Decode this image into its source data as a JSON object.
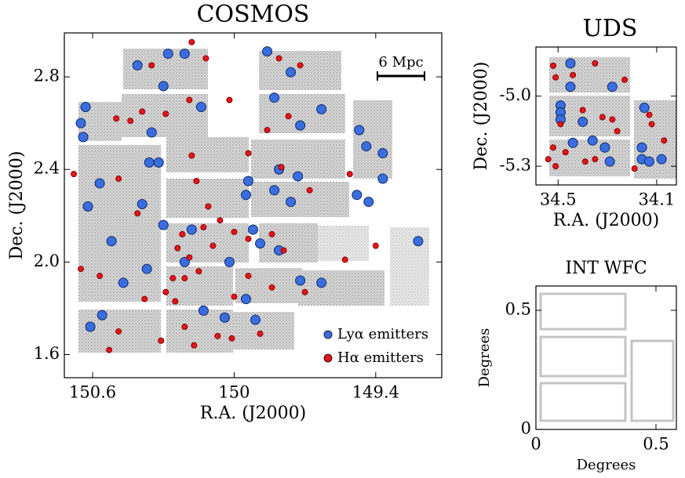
{
  "chart_data": [
    {
      "type": "scatter",
      "title": "COSMOS",
      "xlabel": "R.A. (J2000)",
      "ylabel": "Dec. (J2000)",
      "xlim": [
        150.72,
        149.12
      ],
      "ylim": [
        1.5,
        2.99
      ],
      "xticks": [
        150.6,
        150,
        149.4
      ],
      "yticks": [
        1.6,
        {
          "value": 2,
          "label": "2.0"
        },
        2.4,
        2.8
      ],
      "legend": "lower right",
      "annotation": "6 Mpc",
      "series": [
        {
          "name": "Lyα emitters",
          "color": "#3a6ee0",
          "x": [
            150.41,
            150.28,
            150.21,
            150.3,
            150.14,
            150.35,
            150.63,
            150.65,
            150.64,
            150.36,
            150.32,
            150.57,
            150.62,
            150.39,
            150.3,
            150.52,
            150.18,
            150.21,
            150.37,
            150.47,
            150.56,
            150.61,
            150.13,
            150.04,
            149.91,
            149.95,
            150.02,
            149.86,
            149.76,
            149.83,
            149.63,
            149.72,
            149.47,
            149.44,
            149.37,
            149.37,
            149.48,
            149.43,
            149.76,
            149.83,
            149.73,
            149.81,
            149.94,
            149.89,
            149.81,
            149.72,
            149.63,
            149.22,
            149.95,
            149.92
          ],
          "y": [
            2.85,
            2.9,
            2.9,
            2.76,
            2.67,
            2.56,
            2.67,
            2.6,
            2.54,
            2.43,
            2.43,
            2.34,
            2.24,
            2.25,
            2.16,
            2.09,
            2.14,
            2.0,
            1.97,
            1.91,
            1.77,
            1.72,
            1.79,
            1.76,
            1.75,
            1.84,
            2.0,
            2.91,
            2.82,
            2.71,
            2.66,
            2.59,
            2.57,
            2.5,
            2.47,
            2.36,
            2.29,
            2.26,
            2.26,
            2.31,
            2.37,
            2.4,
            2.35,
            2.08,
            2.05,
            1.92,
            1.91,
            2.09,
            2.29,
            2.14
          ]
        },
        {
          "name": "Hα emitters",
          "color": "#e3161b",
          "x": [
            150.18,
            150.12,
            150.35,
            150.19,
            150.39,
            150.29,
            150.5,
            150.44,
            150.02,
            149.81,
            149.72,
            149.77,
            149.86,
            149.94,
            149.8,
            149.68,
            149.51,
            150.18,
            150.16,
            150.49,
            150.68,
            150.41,
            150.11,
            150.22,
            150.24,
            150.19,
            150.15,
            150.09,
            150.26,
            150.29,
            150.38,
            150.25,
            150.21,
            150.17,
            150.07,
            150.0,
            149.94,
            149.84,
            149.7,
            149.53,
            149.4,
            150.0,
            149.94,
            149.84,
            149.79,
            150.57,
            150.65,
            150.49,
            150.53,
            150.31,
            150.01,
            149.89,
            150.13,
            150.06,
            150.21
          ],
          "y": [
            2.95,
            2.88,
            2.85,
            2.7,
            2.65,
            2.64,
            2.62,
            2.61,
            2.7,
            2.88,
            2.85,
            2.63,
            2.57,
            2.47,
            2.41,
            2.31,
            2.38,
            2.46,
            2.35,
            2.36,
            2.38,
            2.21,
            2.24,
            2.12,
            2.06,
            2.02,
            1.96,
            2.07,
            1.93,
            1.87,
            1.84,
            1.83,
            1.72,
            1.64,
            1.68,
            1.85,
            1.94,
            1.89,
            1.87,
            2.01,
            2.07,
            2.13,
            2.1,
            2.12,
            2.05,
            1.94,
            1.97,
            1.7,
            1.62,
            1.66,
            1.67,
            1.69,
            2.15,
            2.18,
            1.93
          ]
        }
      ]
    },
    {
      "type": "scatter",
      "title": "UDS",
      "xlabel": "R.A. (J2000)",
      "ylabel": "Dec. (J2000)",
      "xlim": [
        34.59,
        34.02
      ],
      "ylim": [
        -5.38,
        -4.79
      ],
      "xticks": [
        34.5,
        34.1
      ],
      "yticks": [
        -5.3,
        {
          "value": -5,
          "label": "-5.0"
        }
      ],
      "series": [
        {
          "name": "Lyα emitters",
          "color": "#3a6ee0",
          "x": [
            34.45,
            34.45,
            34.49,
            34.49,
            34.49,
            34.4,
            34.36,
            34.31,
            34.44,
            34.16,
            34.16,
            34.13,
            34.08,
            34.29,
            34.28,
            34.15
          ],
          "y": [
            -4.86,
            -4.96,
            -5.04,
            -5.07,
            -5.1,
            -5.11,
            -5.19,
            -5.22,
            -5.2,
            -5.22,
            -5.27,
            -5.28,
            -5.27,
            -5.28,
            -4.96,
            -5.05
          ]
        },
        {
          "name": "Hα emitters",
          "color": "#e3161b",
          "x": [
            34.52,
            34.51,
            34.35,
            34.23,
            34.44,
            34.49,
            34.4,
            34.32,
            34.28,
            34.52,
            34.51,
            34.47,
            34.35,
            34.13,
            34.07,
            34.12,
            34.39,
            34.54,
            34.26,
            34.19
          ],
          "y": [
            -4.87,
            -4.92,
            -4.86,
            -4.93,
            -4.91,
            -5.12,
            -5.06,
            -5.09,
            -5.1,
            -5.22,
            -5.3,
            -5.24,
            -5.27,
            -5.08,
            -5.19,
            -5.12,
            -5.28,
            -5.27,
            -5.15,
            -5.31
          ]
        }
      ]
    },
    {
      "type": "footprint",
      "title": "INT WFC",
      "xlabel": "Degrees",
      "ylabel": "Degrees",
      "xlim": [
        0,
        0.585
      ],
      "ylim": [
        0,
        0.602
      ],
      "xticks": [
        0,
        0.5
      ],
      "yticks": [
        0,
        0.5
      ]
    }
  ]
}
